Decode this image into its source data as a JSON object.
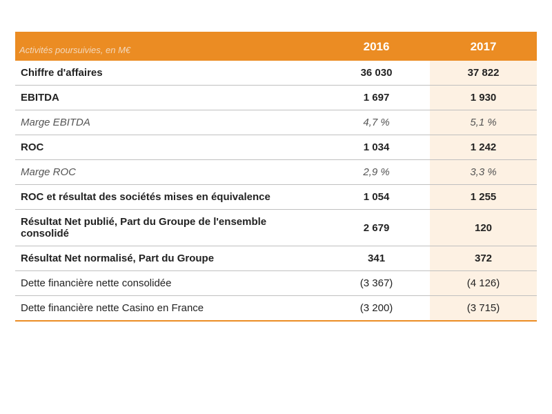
{
  "table": {
    "header": {
      "label_header": "Activités poursuivies, en M€",
      "year1": "2016",
      "year2": "2017"
    },
    "colors": {
      "orange": "#eb8c23",
      "highlight_col_bg": "#fdf1e3",
      "header_label_text": "#f2d8bd",
      "row_border": "#bfbfbf",
      "italic_text": "#555555"
    },
    "rows": [
      {
        "label": "Chiffre d'affaires",
        "y1": "36 030",
        "y2": "37 822",
        "bold": true,
        "italic": false
      },
      {
        "label": "EBITDA",
        "y1": "1 697",
        "y2": "1 930",
        "bold": true,
        "italic": false
      },
      {
        "label": "Marge EBITDA",
        "y1": "4,7 %",
        "y2": "5,1 %",
        "bold": false,
        "italic": true
      },
      {
        "label": "ROC",
        "y1": "1 034",
        "y2": "1 242",
        "bold": true,
        "italic": false
      },
      {
        "label": "Marge ROC",
        "y1": "2,9 %",
        "y2": "3,3 %",
        "bold": false,
        "italic": true
      },
      {
        "label": "ROC et résultat des sociétés mises en équivalence",
        "y1": "1 054",
        "y2": "1 255",
        "bold": true,
        "italic": false
      },
      {
        "label": "Résultat Net publié, Part du Groupe de l'ensemble consolidé",
        "y1": "2 679",
        "y2": "120",
        "bold": true,
        "italic": false
      },
      {
        "label": "Résultat Net normalisé, Part du Groupe",
        "y1": "341",
        "y2": "372",
        "bold": true,
        "italic": false
      },
      {
        "label": "Dette financière nette consolidée",
        "y1": "(3 367)",
        "y2": "(4 126)",
        "bold": false,
        "italic": false
      },
      {
        "label": "Dette financière nette Casino en France",
        "y1": "(3 200)",
        "y2": "(3 715)",
        "bold": false,
        "italic": false
      }
    ]
  }
}
